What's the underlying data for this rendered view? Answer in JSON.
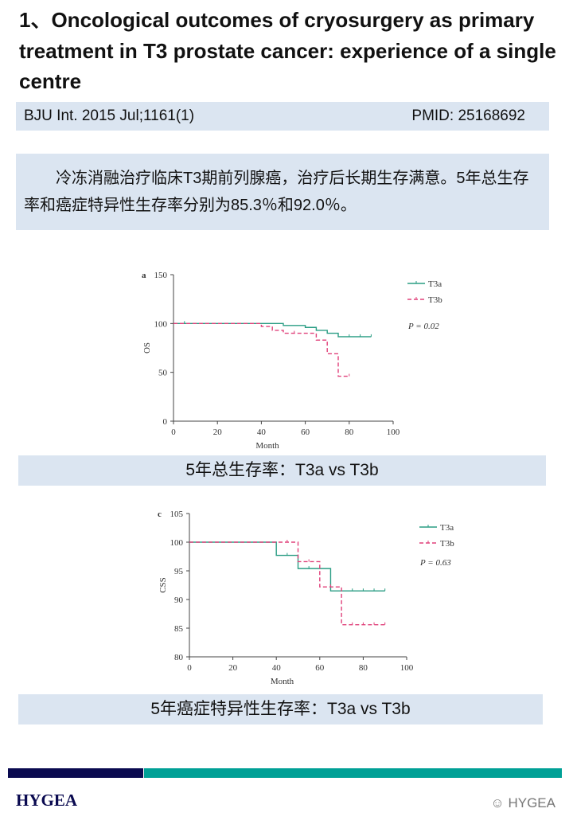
{
  "title": "1、Oncological outcomes of cryosurgery as primary treatment in T3 prostate cancer: experience of a single centre",
  "citation": {
    "journal": "BJU Int. 2015 Jul;1161(1)",
    "pmid": "PMID: 25168692"
  },
  "summary": "冷冻消融治疗临床T3期前列腺癌，治疗后长期生存满意。5年总生存率和癌症特异性生存率分别为85.3％和92.0％。",
  "captions": [
    "5年总生存率：T3a vs T3b",
    "5年癌症特异性生存率：T3a vs T3b"
  ],
  "footer": {
    "logo": "HYGEA",
    "watermark": "HYGEA"
  },
  "colors": {
    "T3a": "#2a9d84",
    "T3b": "#e0407a",
    "band": "#dbe5f1",
    "navy": "#0a0a50",
    "teal": "#00a096"
  },
  "chart_data": [
    {
      "type": "line",
      "panel": "a",
      "xlabel": "Month",
      "ylabel": "OS",
      "xlim": [
        0,
        100
      ],
      "ylim": [
        0,
        150
      ],
      "xticks": [
        0,
        20,
        40,
        60,
        80,
        100
      ],
      "yticks": [
        0,
        50,
        100,
        150
      ],
      "annotation": "P = 0.02",
      "legend": "top-right",
      "series": [
        {
          "name": "T3a",
          "style": "solid step",
          "x": [
            0,
            50,
            60,
            65,
            70,
            75,
            90
          ],
          "y": [
            100,
            98,
            96,
            93,
            90,
            86.5,
            86.5
          ],
          "censored": [
            5,
            80,
            85,
            90
          ]
        },
        {
          "name": "T3b",
          "style": "dashed step",
          "x": [
            0,
            40,
            45,
            50,
            65,
            70,
            75,
            80
          ],
          "y": [
            100,
            97,
            93,
            90,
            83,
            69,
            46,
            46
          ],
          "censored": [
            55,
            80
          ]
        }
      ]
    },
    {
      "type": "line",
      "panel": "c",
      "xlabel": "Month",
      "ylabel": "CSS",
      "xlim": [
        0,
        100
      ],
      "ylim": [
        80,
        105
      ],
      "xticks": [
        0,
        20,
        40,
        60,
        80,
        100
      ],
      "yticks": [
        80,
        85,
        90,
        95,
        100,
        105
      ],
      "annotation": "P = 0.63",
      "legend": "top-right",
      "series": [
        {
          "name": "T3a",
          "style": "solid step",
          "x": [
            0,
            40,
            50,
            65,
            90
          ],
          "y": [
            100,
            97.7,
            95.4,
            91.5,
            91.5
          ],
          "censored": [
            45,
            55,
            75,
            80,
            85,
            90
          ]
        },
        {
          "name": "T3b",
          "style": "dashed step",
          "x": [
            0,
            50,
            60,
            70,
            90
          ],
          "y": [
            100,
            96.6,
            92.2,
            85.6,
            85.6
          ],
          "censored": [
            45,
            55,
            65,
            75,
            80,
            85,
            90
          ]
        }
      ]
    }
  ]
}
